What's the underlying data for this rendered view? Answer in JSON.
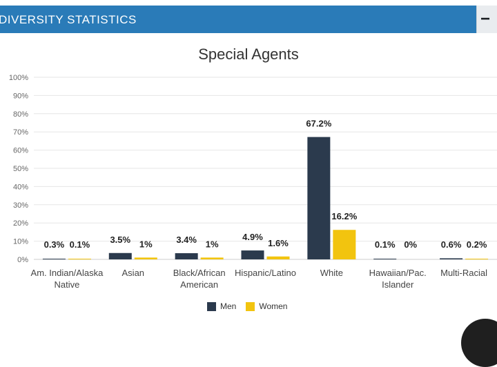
{
  "header": {
    "title": "DIVERSITY STATISTICS",
    "collapse_label": "−"
  },
  "chart_data": {
    "type": "bar",
    "title": "Special Agents",
    "categories": [
      "Am. Indian/Alaska Native",
      "Asian",
      "Black/African American",
      "Hispanic/Latino",
      "White",
      "Hawaiian/Pac. Islander",
      "Multi-Racial"
    ],
    "category_lines": [
      [
        "Am. Indian/Alaska",
        "Native"
      ],
      [
        "Asian"
      ],
      [
        "Black/African",
        "American"
      ],
      [
        "Hispanic/Latino"
      ],
      [
        "White"
      ],
      [
        "Hawaiian/Pac.",
        "Islander"
      ],
      [
        "Multi-Racial"
      ]
    ],
    "series": [
      {
        "name": "Men",
        "color": "#2b3a4d",
        "values": [
          0.3,
          3.5,
          3.4,
          4.9,
          67.2,
          0.1,
          0.6
        ],
        "labels": [
          "0.3%",
          "3.5%",
          "3.4%",
          "4.9%",
          "67.2%",
          "0.1%",
          "0.6%"
        ]
      },
      {
        "name": "Women",
        "color": "#f2c40f",
        "values": [
          0.1,
          1,
          1,
          1.6,
          16.2,
          0,
          0.2
        ],
        "labels": [
          "0.1%",
          "1%",
          "1%",
          "1.6%",
          "16.2%",
          "0%",
          "0.2%"
        ]
      }
    ],
    "ylim": [
      0,
      100
    ],
    "yticks": [
      "0%",
      "10%",
      "20%",
      "30%",
      "40%",
      "50%",
      "60%",
      "70%",
      "80%",
      "90%",
      "100%"
    ],
    "grid": true,
    "legend_position": "bottom"
  }
}
